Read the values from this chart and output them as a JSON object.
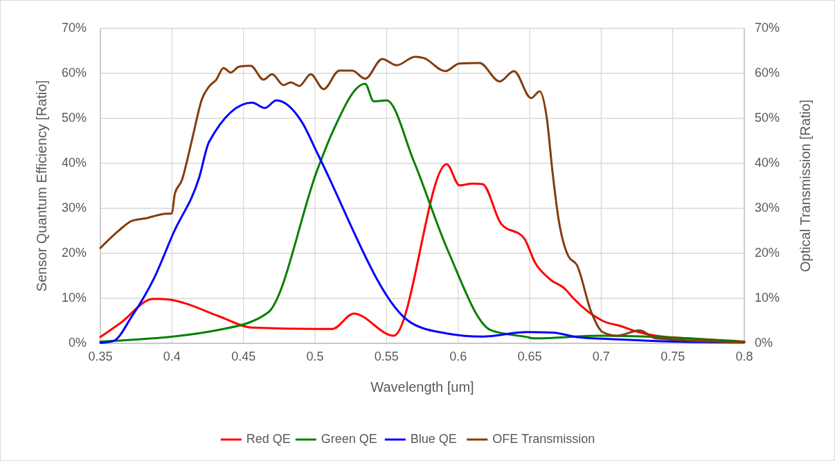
{
  "chart_data": {
    "type": "line",
    "xlabel": "Wavelength [um]",
    "ylabel": "Sensor Quantum Efficiency [Ratio]",
    "y2label": "Optical Transmission [Ratio]",
    "xlim": [
      0.35,
      0.8
    ],
    "xticks": [
      0.35,
      0.4,
      0.45,
      0.5,
      0.55,
      0.6,
      0.65,
      0.7,
      0.75,
      0.8
    ],
    "ylim": [
      0,
      70
    ],
    "yticks": [
      {
        "value": 0,
        "label": "0%"
      },
      {
        "value": 10,
        "label": "10%"
      },
      {
        "value": 20,
        "label": "20%"
      },
      {
        "value": 30,
        "label": "30%"
      },
      {
        "value": 40,
        "label": "40%"
      },
      {
        "value": 50,
        "label": "50%"
      },
      {
        "value": 60,
        "label": "60%"
      },
      {
        "value": 70,
        "label": "70%"
      }
    ],
    "y2lim": [
      0,
      70
    ],
    "y2ticks": [
      {
        "value": 0,
        "label": "0%"
      },
      {
        "value": 10,
        "label": "10%"
      },
      {
        "value": 20,
        "label": "20%"
      },
      {
        "value": 30,
        "label": "30%"
      },
      {
        "value": 40,
        "label": "40%"
      },
      {
        "value": 50,
        "label": "50%"
      },
      {
        "value": 60,
        "label": "60%"
      },
      {
        "value": 70,
        "label": "70%"
      }
    ],
    "grid": true,
    "legend": "bottom",
    "marker": "none",
    "line_style": "solid",
    "series": [
      {
        "name": "Red QE",
        "color": "#ff0000",
        "x": [
          0.35,
          0.364,
          0.387,
          0.399,
          0.409,
          0.433,
          0.456,
          0.502,
          0.512,
          0.527,
          0.555,
          0.592,
          0.601,
          0.61,
          0.617,
          0.63,
          0.646,
          0.654,
          0.664,
          0.675,
          0.68,
          0.691,
          0.701,
          0.715,
          0.724,
          0.738,
          0.767,
          0.8
        ],
        "values": [
          1.4,
          4.5,
          9.9,
          9.7,
          8.9,
          6,
          3.5,
          3.2,
          3.2,
          6.6,
          1.7,
          39.8,
          35.1,
          35.5,
          35.4,
          26.6,
          23.4,
          17.8,
          14.3,
          12,
          10.2,
          7,
          5,
          3.7,
          2.7,
          1.7,
          1,
          0.4
        ]
      },
      {
        "name": "Green QE",
        "color": "#008000",
        "x": [
          0.35,
          0.436,
          0.467,
          0.502,
          0.512,
          0.535,
          0.541,
          0.55,
          0.569,
          0.593,
          0.623,
          0.648,
          0.653,
          0.699,
          0.8
        ],
        "values": [
          0.4,
          3.2,
          6.8,
          38.9,
          46.8,
          57.7,
          53.8,
          54,
          40.5,
          20.5,
          2.9,
          1.4,
          1.1,
          1.7,
          0.3
        ]
      },
      {
        "name": "Blue QE",
        "color": "#0000ff",
        "x": [
          0.35,
          0.359,
          0.372,
          0.388,
          0.401,
          0.419,
          0.426,
          0.456,
          0.465,
          0.473,
          0.491,
          0.502,
          0.567,
          0.592,
          0.617,
          0.648,
          0.666,
          0.683,
          0.711,
          0.751,
          0.8
        ],
        "values": [
          0.1,
          0.5,
          6,
          14.8,
          24.5,
          36.8,
          44.8,
          53.5,
          52.3,
          54,
          49.1,
          42,
          4.6,
          2.2,
          1.5,
          2.5,
          2.4,
          1.4,
          0.9,
          0.4,
          0.2
        ]
      },
      {
        "name": "OFE Transmission",
        "color": "#843c0c",
        "x": [
          0.35,
          0.363,
          0.372,
          0.382,
          0.393,
          0.4,
          0.402,
          0.407,
          0.412,
          0.415,
          0.421,
          0.426,
          0.431,
          0.436,
          0.441,
          0.447,
          0.455,
          0.464,
          0.47,
          0.478,
          0.483,
          0.489,
          0.497,
          0.506,
          0.517,
          0.526,
          0.535,
          0.547,
          0.557,
          0.57,
          0.576,
          0.591,
          0.601,
          0.615,
          0.629,
          0.639,
          0.651,
          0.657,
          0.662,
          0.666,
          0.67,
          0.677,
          0.683,
          0.693,
          0.701,
          0.711,
          0.727,
          0.738,
          0.8
        ],
        "values": [
          21.2,
          25.1,
          27.2,
          27.8,
          28.7,
          28.9,
          33.2,
          36.3,
          42.5,
          46.6,
          54.3,
          57.1,
          58.6,
          61.2,
          60.2,
          61.5,
          61.7,
          58.6,
          59.8,
          57.4,
          58,
          57.2,
          59.8,
          56.5,
          60.6,
          60.6,
          58.8,
          63.2,
          61.8,
          63.7,
          63.4,
          60.5,
          62.2,
          62.3,
          58.2,
          60.5,
          54.5,
          56,
          50,
          38,
          28,
          19.4,
          17.4,
          7,
          2.5,
          1.7,
          2.9,
          1.1,
          0.2
        ]
      }
    ]
  }
}
